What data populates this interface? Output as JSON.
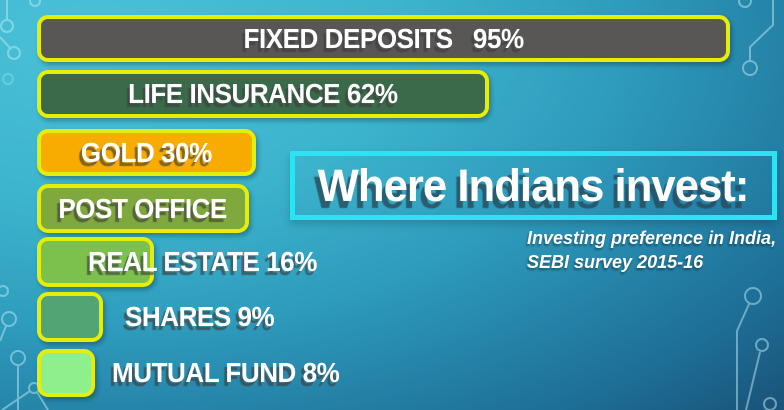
{
  "title": {
    "text": "Where Indians invest:"
  },
  "subtitle": {
    "line1": "Investing preference in India,",
    "line2": "SEBI survey 2015-16"
  },
  "chart_data": {
    "type": "bar",
    "orientation": "horizontal",
    "title": "Where Indians invest:",
    "subtitle": "Investing preference in India, SEBI survey 2015-16",
    "xlim": [
      0,
      100
    ],
    "unit": "%",
    "bars": [
      {
        "category": "FIXED DEPOSITS",
        "value": 95,
        "label": "FIXED DEPOSITS   95%",
        "value_shown": true,
        "color": "#585756"
      },
      {
        "category": "LIFE INSURANCE",
        "value": 62,
        "label": "LIFE INSURANCE 62%",
        "value_shown": true,
        "color": "#3a6a4a"
      },
      {
        "category": "GOLD",
        "value": 30,
        "label": "GOLD 30%",
        "value_shown": true,
        "color": "#f8ab00"
      },
      {
        "category": "POST OFFICE",
        "value": 29,
        "label": "POST OFFICE",
        "value_shown": false,
        "color": "#7fa93d"
      },
      {
        "category": "REAL ESTATE",
        "value": 16,
        "label": "REAL ESTATE 16%",
        "value_shown": true,
        "color": "#7cc04d"
      },
      {
        "category": "SHARES",
        "value": 9,
        "label": "SHARES 9%",
        "value_shown": true,
        "color": "#52a475"
      },
      {
        "category": "MUTUAL FUND",
        "value": 8,
        "label": "MUTUAL FUND 8%",
        "value_shown": true,
        "color": "#8df08d"
      }
    ],
    "bar_border_color": "#e6ee08",
    "title_border_color": "#2fe2f3",
    "background_colors": [
      "#4ac1d8",
      "#16395d"
    ],
    "legend": "none",
    "grid": false
  }
}
